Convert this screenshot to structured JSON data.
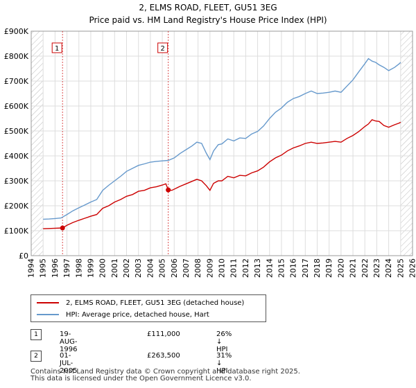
{
  "chart_data": {
    "type": "line",
    "title": "2, ELMS ROAD, FLEET, GU51 3EG",
    "subtitle": "Price paid vs. HM Land Registry's House Price Index (HPI)",
    "xlim": [
      1994.0,
      2026.0
    ],
    "ylim": [
      0,
      900000
    ],
    "y_ticks": [
      0,
      100000,
      200000,
      300000,
      400000,
      500000,
      600000,
      700000,
      800000,
      900000
    ],
    "y_tick_labels": [
      "£0",
      "£100K",
      "£200K",
      "£300K",
      "£400K",
      "£500K",
      "£600K",
      "£700K",
      "£800K",
      "£900K"
    ],
    "x_ticks": [
      1994,
      1995,
      1996,
      1997,
      1998,
      1999,
      2000,
      2001,
      2002,
      2003,
      2004,
      2005,
      2006,
      2007,
      2008,
      2009,
      2010,
      2011,
      2012,
      2013,
      2014,
      2015,
      2016,
      2017,
      2018,
      2019,
      2020,
      2021,
      2022,
      2023,
      2024,
      2025,
      2026
    ],
    "x_tick_labels": [
      "1994",
      "1995",
      "1996",
      "1997",
      "1998",
      "1999",
      "2000",
      "2001",
      "2002",
      "2003",
      "2004",
      "2005",
      "2006",
      "2007",
      "2008",
      "2009",
      "2010",
      "2011",
      "2012",
      "2013",
      "2014",
      "2015",
      "2016",
      "2017",
      "2018",
      "2019",
      "2020",
      "2021",
      "2022",
      "2023",
      "2024",
      "2025",
      "2026"
    ],
    "grid": true,
    "hatch_before": 1995.0,
    "hatch_after": 2025.0,
    "series": [
      {
        "name": "2, ELMS ROAD, FLEET, GU51 3EG (detached house)",
        "color": "#cc0000",
        "x": [
          1995.0,
          1995.5,
          1996.0,
          1996.63,
          1997.0,
          1997.5,
          1998.0,
          1998.5,
          1999.0,
          1999.5,
          2000.0,
          2000.5,
          2001.0,
          2001.5,
          2002.0,
          2002.5,
          2003.0,
          2003.5,
          2004.0,
          2004.5,
          2005.0,
          2005.3,
          2005.5,
          2005.8,
          2006.5,
          2007.0,
          2007.5,
          2007.9,
          2008.3,
          2008.7,
          2009.0,
          2009.3,
          2009.7,
          2010.0,
          2010.5,
          2011.0,
          2011.5,
          2012.0,
          2012.5,
          2013.0,
          2013.5,
          2014.0,
          2014.5,
          2015.0,
          2015.5,
          2016.0,
          2016.5,
          2017.0,
          2017.5,
          2018.0,
          2018.5,
          2019.0,
          2019.5,
          2020.0,
          2020.5,
          2021.0,
          2021.5,
          2022.0,
          2022.3,
          2022.6,
          2022.9,
          2023.2,
          2023.6,
          2024.0,
          2024.5,
          2024.9,
          2025.0
        ],
        "y": [
          108000,
          109000,
          110000,
          111000,
          122000,
          133000,
          142000,
          150000,
          158000,
          165000,
          190000,
          200000,
          215000,
          225000,
          238000,
          245000,
          258000,
          262000,
          272000,
          276000,
          283000,
          288000,
          263500,
          262000,
          278000,
          288000,
          298000,
          306000,
          300000,
          280000,
          262000,
          290000,
          300000,
          300000,
          318000,
          312000,
          322000,
          320000,
          332000,
          340000,
          355000,
          376000,
          392000,
          403000,
          420000,
          432000,
          440000,
          450000,
          455000,
          450000,
          452000,
          455000,
          458000,
          455000,
          470000,
          482000,
          498000,
          518000,
          528000,
          545000,
          540000,
          538000,
          522000,
          515000,
          525000,
          532000,
          535000
        ]
      },
      {
        "name": "HPI: Average price, detached house, Hart",
        "color": "#6699cc",
        "x": [
          1995.0,
          1995.5,
          1996.0,
          1996.5,
          1997.0,
          1997.5,
          1998.0,
          1998.5,
          1999.0,
          1999.5,
          2000.0,
          2000.5,
          2001.0,
          2001.5,
          2002.0,
          2002.5,
          2003.0,
          2003.5,
          2004.0,
          2004.5,
          2005.0,
          2005.5,
          2006.0,
          2006.5,
          2007.0,
          2007.5,
          2007.9,
          2008.3,
          2008.7,
          2009.0,
          2009.3,
          2009.7,
          2010.0,
          2010.5,
          2011.0,
          2011.5,
          2012.0,
          2012.5,
          2013.0,
          2013.5,
          2014.0,
          2014.5,
          2015.0,
          2015.5,
          2016.0,
          2016.5,
          2017.0,
          2017.5,
          2018.0,
          2018.5,
          2019.0,
          2019.5,
          2020.0,
          2020.5,
          2021.0,
          2021.5,
          2022.0,
          2022.3,
          2022.6,
          2022.9,
          2023.2,
          2023.6,
          2024.0,
          2024.5,
          2024.9,
          2025.0
        ],
        "y": [
          146000,
          147000,
          149000,
          151000,
          165000,
          180000,
          192000,
          203000,
          215000,
          225000,
          262000,
          282000,
          300000,
          318000,
          338000,
          350000,
          362000,
          368000,
          375000,
          378000,
          380000,
          382000,
          392000,
          410000,
          425000,
          440000,
          455000,
          450000,
          410000,
          385000,
          420000,
          445000,
          448000,
          468000,
          460000,
          472000,
          470000,
          488000,
          498000,
          520000,
          550000,
          575000,
          592000,
          615000,
          630000,
          638000,
          650000,
          660000,
          650000,
          652000,
          655000,
          660000,
          655000,
          680000,
          705000,
          738000,
          770000,
          790000,
          780000,
          775000,
          765000,
          755000,
          742000,
          755000,
          770000,
          775000
        ]
      }
    ],
    "events": [
      {
        "label": "1",
        "x": 1996.63,
        "price": 111000
      },
      {
        "label": "2",
        "x": 2005.5,
        "price": 263500
      }
    ],
    "legend": {
      "position": "below",
      "entries": [
        "2, ELMS ROAD, FLEET, GU51 3EG (detached house)",
        "HPI: Average price, detached house, Hart"
      ]
    }
  },
  "legend_colors": {
    "red": "#cc0000",
    "blue": "#6699cc"
  },
  "transactions": [
    {
      "num": "1",
      "date": "19-AUG-1996",
      "price": "£111,000",
      "hpi": "26% ↓ HPI"
    },
    {
      "num": "2",
      "date": "01-JUL-2005",
      "price": "£263,500",
      "hpi": "31% ↓ HPI"
    }
  ],
  "footer": {
    "line1": "Contains HM Land Registry data © Crown copyright and database right 2025.",
    "line2": "This data is licensed under the Open Government Licence v3.0."
  }
}
